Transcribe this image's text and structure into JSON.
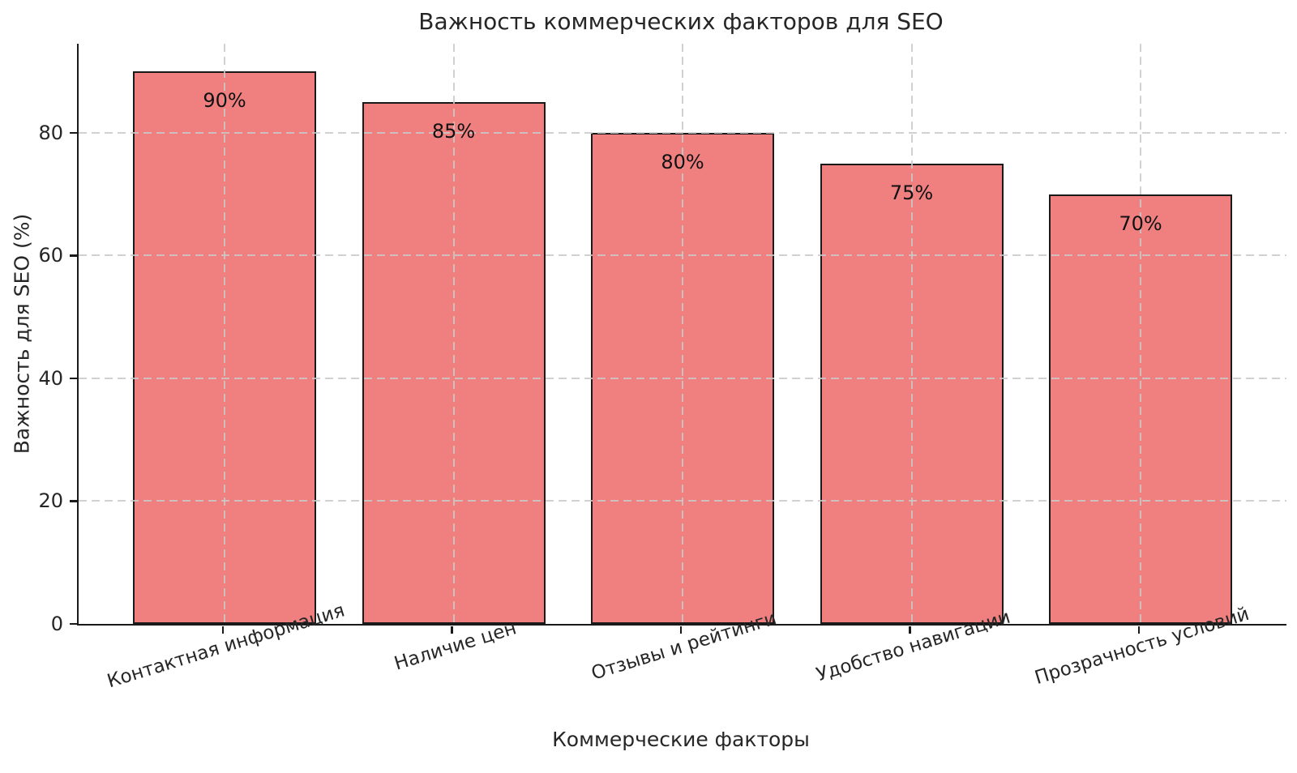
{
  "chart_data": {
    "type": "bar",
    "title": "Важность коммерческих факторов для SEO",
    "xlabel": "Коммерческие факторы",
    "ylabel": "Важность для SEO (%)",
    "categories": [
      "Контактная информация",
      "Наличие цен",
      "Отзывы и рейтинги",
      "Удобство навигации",
      "Прозрачность условий"
    ],
    "values": [
      90,
      85,
      80,
      75,
      70
    ],
    "bar_labels": [
      "90%",
      "85%",
      "80%",
      "75%",
      "70%"
    ],
    "y_ticks": [
      0,
      20,
      40,
      60,
      80
    ],
    "ylim": [
      0,
      94.5
    ],
    "grid": true,
    "grid_style": "dashed",
    "legend": null,
    "colors": {
      "bar_fill": "#f08080",
      "bar_edge": "#1a1a1a",
      "grid": "#c9c9c9",
      "background": "#ffffff",
      "text": "#262626"
    }
  }
}
